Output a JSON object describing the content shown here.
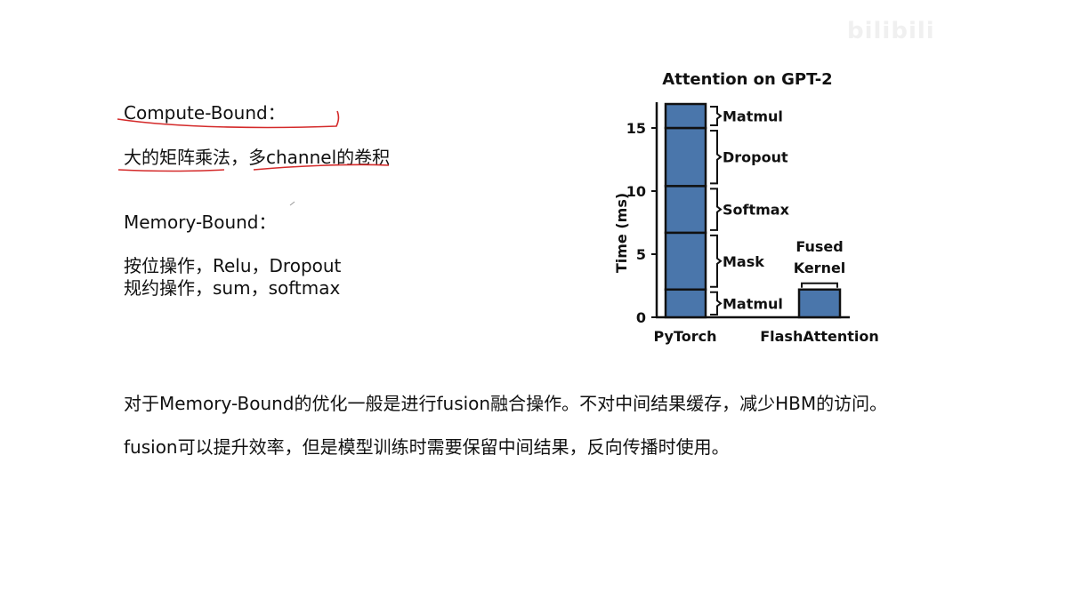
{
  "watermark": "bilibili",
  "compute": {
    "heading": "Compute-Bound：",
    "examples": "大的矩阵乘法，多channel的卷积"
  },
  "memory": {
    "heading": "Memory-Bound：",
    "line1": "按位操作，Relu，Dropout",
    "line2": "规约操作，sum，softmax"
  },
  "notes": {
    "line1": "对于Memory-Bound的优化一般是进行fusion融合操作。不对中间结果缓存，减少HBM的访问。",
    "line2": "fusion可以提升效率，但是模型训练时需要保留中间结果，反向传播时使用。"
  },
  "chart_data": {
    "type": "bar",
    "title": "Attention on GPT-2",
    "ylabel": "Time (ms)",
    "xlabel": "",
    "ylim": [
      0,
      17.5
    ],
    "yticks": [
      0,
      5,
      10,
      15
    ],
    "categories": [
      "PyTorch",
      "FlashAttention"
    ],
    "stacks": [
      {
        "category": "PyTorch",
        "segments": [
          {
            "name": "Matmul",
            "start": 0,
            "end": 2.2
          },
          {
            "name": "Mask",
            "start": 2.2,
            "end": 6.7
          },
          {
            "name": "Softmax",
            "start": 6.7,
            "end": 10.4
          },
          {
            "name": "Dropout",
            "start": 10.4,
            "end": 15.0
          },
          {
            "name": "Matmul",
            "start": 15.0,
            "end": 16.9
          }
        ]
      },
      {
        "category": "FlashAttention",
        "segments": [
          {
            "name": "Fused Kernel",
            "start": 0,
            "end": 2.2
          }
        ]
      }
    ],
    "bar_color": "#4a76ab",
    "grid": false,
    "legend": "none"
  }
}
